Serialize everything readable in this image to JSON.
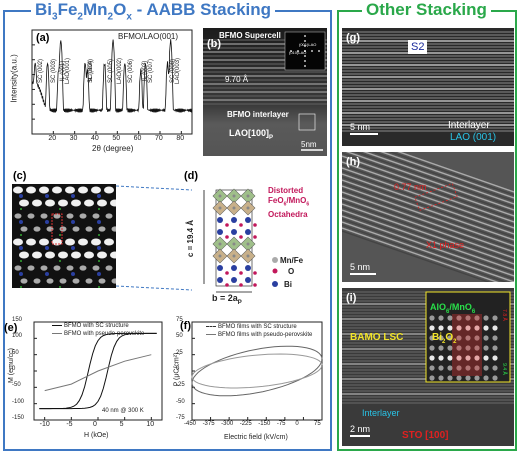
{
  "headers": {
    "left_main": "Bi",
    "left_sub1": "3",
    "left_mid1": "Fe",
    "left_sub2": "2",
    "left_mid2": "Mn",
    "left_sub3": "2",
    "left_mid3": "O",
    "left_sub4": "x",
    "left_tail": " - AABB Stacking",
    "right": "Other Stacking"
  },
  "panel_a": {
    "label": "(a)",
    "inset": "BFMO/LAO(001)",
    "ylabel": "Intensity(a.u.)",
    "xlabel": "2θ (degree)",
    "xticks": [
      "20",
      "30",
      "40",
      "50",
      "60",
      "70",
      "80"
    ],
    "peaks": [
      "SC (002)",
      "IL (001)",
      "SC (003)",
      "LAO(001)",
      "SC (004)",
      "IL (002)",
      "SC (005)",
      "LAO(002)",
      "SC (006)",
      "SC (007)",
      "IL (003)",
      "LAO(003)",
      "SC (008)"
    ]
  },
  "chart_data": [
    {
      "type": "line",
      "title": "",
      "xlabel": "2θ (degree)",
      "ylabel": "Intensity(a.u.)",
      "yscale": "log",
      "xlim": [
        10,
        85
      ],
      "ylim": [
        1,
        10000000
      ],
      "xticks": [
        20,
        30,
        40,
        50,
        60,
        70,
        80
      ],
      "yticks": [
        1,
        10,
        100,
        1000,
        10000,
        100000,
        1000000,
        10000000
      ],
      "legend": "BFMO/LAO(001)",
      "peaks": [
        {
          "label": "SC (002)",
          "x": 11.5
        },
        {
          "label": "IL (001)",
          "x": 22.5
        },
        {
          "label": "SC (003)",
          "x": 17.3
        },
        {
          "label": "LAO(001)",
          "x": 23.5
        },
        {
          "label": "SC (004)",
          "x": 34.9
        },
        {
          "label": "IL (002)",
          "x": 36.0
        },
        {
          "label": "SC (005)",
          "x": 44.0
        },
        {
          "label": "LAO(002)",
          "x": 48.0
        },
        {
          "label": "SC (006)",
          "x": 53.5
        },
        {
          "label": "SC (007)",
          "x": 63.2
        },
        {
          "label": "IL (003)",
          "x": 61.0
        },
        {
          "label": "LAO(003)",
          "x": 75.0
        },
        {
          "label": "SC (008)",
          "x": 73.5
        }
      ]
    },
    {
      "type": "line",
      "title": "",
      "xlabel": "H (kOe)",
      "ylabel": "M (emu/cc)",
      "xlim": [
        -12,
        12
      ],
      "ylim": [
        -150,
        150
      ],
      "xticks": [
        -10,
        -5,
        0,
        5,
        10
      ],
      "yticks": [
        -150,
        -100,
        -50,
        0,
        50,
        100,
        150
      ],
      "legend": "top-left",
      "annotation": "40 nm @ 300 K",
      "series": [
        {
          "name": "BFMO with SC structure",
          "x": [
            -10,
            -6,
            -3,
            -1,
            0,
            1,
            2,
            4,
            6,
            10
          ],
          "y": [
            -120,
            -115,
            -100,
            -60,
            -20,
            60,
            95,
            110,
            118,
            120
          ]
        },
        {
          "name": "BFMO with pseudo-perovskite",
          "x": [
            -10,
            -5,
            0,
            5,
            10
          ],
          "y": [
            -60,
            -40,
            0,
            30,
            50
          ]
        }
      ]
    },
    {
      "type": "line",
      "title": "",
      "xlabel": "Electric field (kV/cm)",
      "ylabel": "P (μC/cm²)",
      "xlim": [
        -450,
        75
      ],
      "ylim": [
        -75,
        75
      ],
      "xticks": [
        -450,
        -375,
        -300,
        -225,
        -150,
        -75,
        0,
        75
      ],
      "yticks": [
        -75,
        -50,
        -25,
        0,
        25,
        50,
        75
      ],
      "legend": "top-left",
      "series": [
        {
          "name": "BFMO films with SC structure",
          "x": [
            -450,
            -300,
            -150,
            0,
            75
          ],
          "y": [
            -40,
            -25,
            0,
            25,
            40
          ]
        },
        {
          "name": "BFMO films with pseudo-perovskite",
          "x": [
            -450,
            -300,
            -150,
            0,
            75
          ],
          "y": [
            -30,
            -15,
            0,
            15,
            30
          ]
        }
      ]
    }
  ],
  "panel_b": {
    "label": "(b)",
    "title": "BFMO Supercell",
    "spacing": "9.70 Å",
    "interlayer": "BFMO interlayer",
    "substrate": "LAO[100]",
    "substrate_sub": "P",
    "scale": "5nm",
    "fft1": "(001)LAO",
    "fft2": "(010)LAO"
  },
  "panel_c": {
    "label": "(c)"
  },
  "panel_d": {
    "label": "(d)",
    "note1": "Distorted",
    "note2": "FeO",
    "note2_sub": "6",
    "note2b": "/MnO",
    "note2b_sub": "6",
    "note3": "Octahedra",
    "c_axis": "c = 19.4 Å",
    "b_axis": "b = 2a",
    "b_axis_sub": "P",
    "legend_mnfe": "Mn/Fe",
    "legend_o": "O",
    "legend_bi": "Bi"
  },
  "panel_e": {
    "label": "(e)",
    "legend1": "BFMO with SC structure",
    "legend2": "BFMO with pseudo-perovskite",
    "ylabel": "M (emu/cc)",
    "xlabel": "H (kOe)",
    "yticks": [
      "150",
      "100",
      "50",
      "0",
      "-50",
      "-100",
      "-150"
    ],
    "xticks": [
      "-10",
      "-5",
      "0",
      "5",
      "10"
    ],
    "annotation": "40 nm @ 300 K"
  },
  "panel_f": {
    "label": "(f)",
    "legend1": "BFMO films with SC structure",
    "legend2": "BFMO films with pseudo-perovskite",
    "ylabel": "P (μC/cm²)",
    "xlabel": "Electric field (kV/cm)",
    "yticks": [
      "75",
      "50",
      "25",
      "0",
      "-25",
      "-50",
      "-75"
    ],
    "xticks": [
      "-450",
      "-375",
      "-300",
      "-225",
      "-150",
      "-75",
      "0",
      "75"
    ]
  },
  "panel_g": {
    "label": "(g)",
    "tag": "S2",
    "scale": "5 nm",
    "interlayer": "Interlayer",
    "substrate": "LAO (001)"
  },
  "panel_h": {
    "label": "(h)",
    "spacing": "0.77 nm",
    "phase": "X1 phase",
    "scale": "5 nm"
  },
  "panel_i": {
    "label": "(i)",
    "inset_top": "AlO",
    "inset_top_sub": "6",
    "inset_top_b": "/MnO",
    "inset_top_b_sub": "6",
    "left_label": "BAMO LSC",
    "bi2o2": "Bi",
    "bi2o2_sub1": "2",
    "bi2o2_b": "O",
    "bi2o2_sub2": "2",
    "vert_label1": "7.8 Å",
    "vert_label2": "9.4 Å",
    "interlayer": "Interlayer",
    "scale": "2 nm",
    "substrate": "STO [100]"
  },
  "colors": {
    "blue": "#3f78c3",
    "green": "#2aa84a",
    "red_text": "#e02020",
    "cyan_text": "#29c3e6",
    "yellow_text": "#f3e52a"
  }
}
